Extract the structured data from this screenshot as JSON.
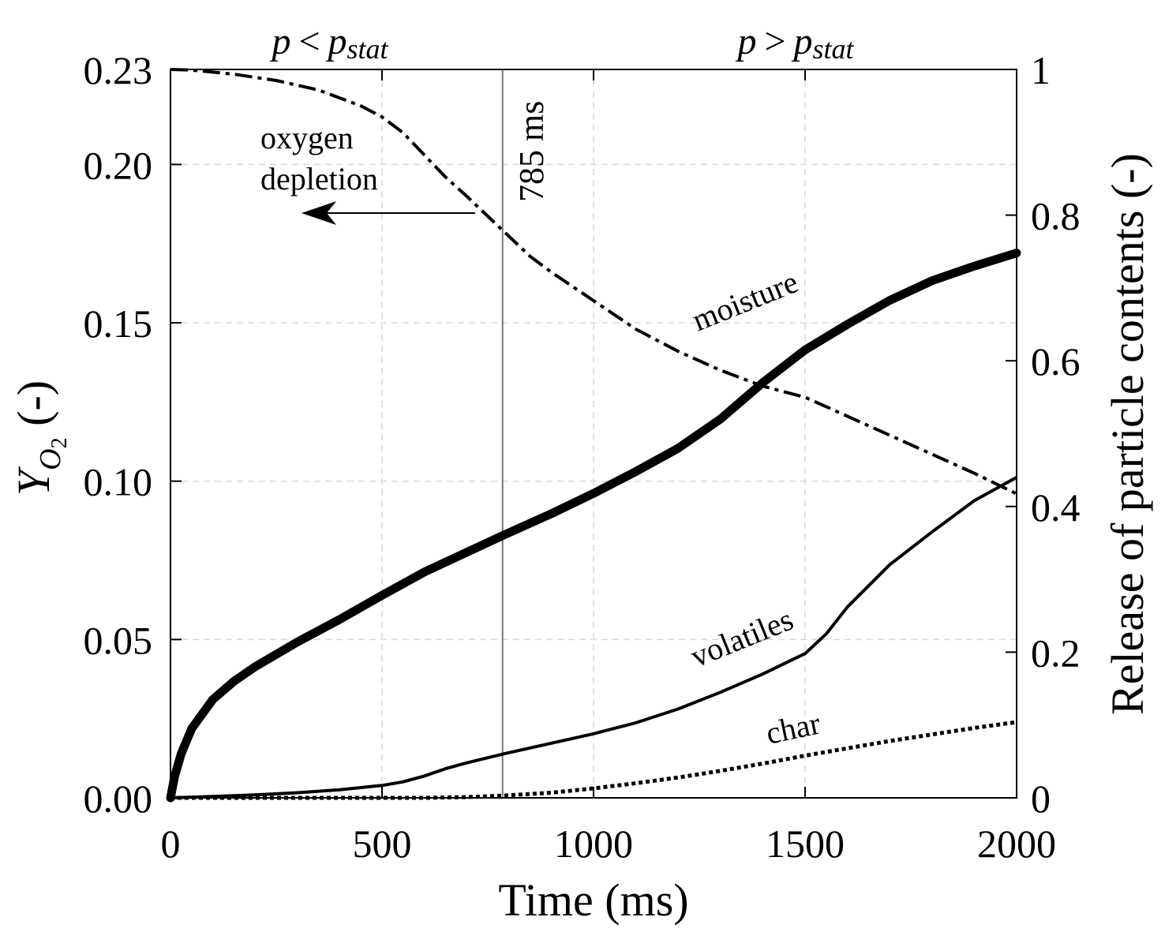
{
  "chart_data": {
    "type": "line",
    "xlabel": "Time (ms)",
    "ylabel_left": "Y_O2 (-)",
    "ylabel_right": "Release of particle contents (-)",
    "xlim": [
      0,
      2000
    ],
    "ylim_left": [
      0,
      0.23
    ],
    "ylim_right": [
      0,
      1
    ],
    "grid": true,
    "x_ticks": [
      0,
      500,
      1000,
      1500,
      2000
    ],
    "x_tick_labels": [
      "0",
      "500",
      "1000",
      "1500",
      "2000"
    ],
    "left_ticks": [
      0,
      0.05,
      0.1,
      0.15,
      0.2,
      0.23
    ],
    "left_tick_labels": [
      "0.00",
      "0.05",
      "0.10",
      "0.15",
      "0.20",
      "0.23"
    ],
    "right_ticks": [
      0,
      0.2,
      0.4,
      0.6,
      0.8,
      1
    ],
    "right_tick_labels": [
      "0",
      "0.2",
      "0.4",
      "0.6",
      "0.8",
      "1"
    ],
    "series": [
      {
        "name": "oxygen",
        "axis": "left",
        "style": "dash-dot",
        "x": [
          0,
          50,
          150,
          250,
          350,
          450,
          500,
          550,
          600,
          650,
          700,
          785,
          850,
          900,
          1000,
          1100,
          1200,
          1300,
          1400,
          1500,
          1600,
          1700,
          1800,
          1900,
          2000
        ],
        "y": [
          0.23,
          0.2298,
          0.2285,
          0.2265,
          0.2235,
          0.2185,
          0.215,
          0.21,
          0.203,
          0.196,
          0.19,
          0.1792,
          0.171,
          0.166,
          0.157,
          0.148,
          0.141,
          0.135,
          0.13,
          0.1265,
          0.1205,
          0.1145,
          0.1085,
          0.1025,
          0.096
        ]
      },
      {
        "name": "moisture",
        "axis": "right",
        "style": "thick",
        "x": [
          0,
          10,
          25,
          50,
          100,
          150,
          200,
          300,
          400,
          500,
          600,
          700,
          785,
          900,
          1000,
          1100,
          1200,
          1300,
          1400,
          1500,
          1600,
          1700,
          1800,
          1900,
          2000
        ],
        "y": [
          0,
          0.03,
          0.06,
          0.095,
          0.135,
          0.16,
          0.18,
          0.214,
          0.245,
          0.278,
          0.31,
          0.337,
          0.36,
          0.39,
          0.418,
          0.448,
          0.48,
          0.52,
          0.57,
          0.615,
          0.65,
          0.683,
          0.71,
          0.73,
          0.748
        ]
      },
      {
        "name": "volatiles",
        "axis": "right",
        "style": "solid",
        "x": [
          0,
          100,
          200,
          300,
          400,
          500,
          550,
          600,
          650,
          700,
          785,
          900,
          1000,
          1100,
          1200,
          1300,
          1400,
          1500,
          1550,
          1600,
          1700,
          1800,
          1900,
          2000
        ],
        "y": [
          0,
          0.002,
          0.004,
          0.007,
          0.011,
          0.017,
          0.022,
          0.03,
          0.04,
          0.048,
          0.06,
          0.075,
          0.088,
          0.103,
          0.122,
          0.145,
          0.17,
          0.198,
          0.225,
          0.262,
          0.32,
          0.365,
          0.408,
          0.44
        ]
      },
      {
        "name": "char",
        "axis": "right",
        "style": "dotted",
        "x": [
          0,
          300,
          600,
          700,
          785,
          900,
          1000,
          1100,
          1200,
          1300,
          1400,
          1500,
          1600,
          1700,
          1800,
          1900,
          2000
        ],
        "y": [
          0,
          0,
          0,
          0.001,
          0.003,
          0.007,
          0.013,
          0.02,
          0.028,
          0.037,
          0.047,
          0.058,
          0.068,
          0.078,
          0.087,
          0.096,
          0.104
        ]
      }
    ],
    "vline": {
      "x": 785,
      "label": "785 ms"
    },
    "annotations": {
      "oxygen_line1": "oxygen",
      "oxygen_line2": "depletion",
      "moisture": "moisture",
      "volatiles": "volatiles",
      "char": "char"
    },
    "regions": {
      "left_p": "p",
      "left_op": "<",
      "left_pstat": "p",
      "left_sub": "stat",
      "right_p": "p",
      "right_op": ">",
      "right_pstat": "p",
      "right_sub": "stat"
    }
  }
}
